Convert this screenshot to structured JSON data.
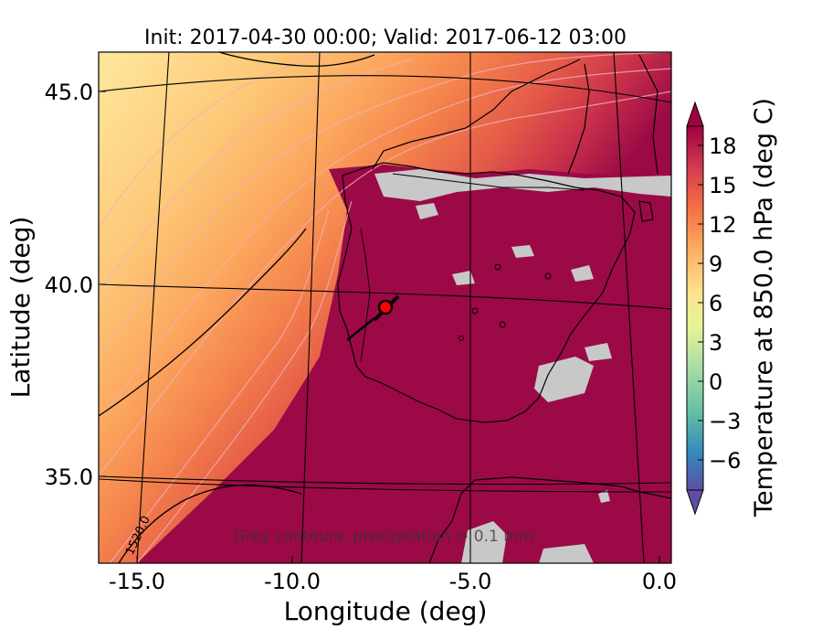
{
  "title": "Init: 2017-04-30 00:00; Valid: 2017-06-12 03:00",
  "xlabel": "Longitude (deg)",
  "ylabel": "Latitude (deg)",
  "xticks": [
    "-15.0",
    "-10.0",
    "-5.0",
    "0.0"
  ],
  "yticks": [
    "45.0",
    "40.0",
    "35.0"
  ],
  "colorbar": {
    "label": "Temperature at 850.0 hPa (deg C)",
    "ticks": [
      "18",
      "15",
      "12",
      "9",
      "6",
      "3",
      "0",
      "−3",
      "−6"
    ],
    "range": [
      -8,
      20
    ]
  },
  "annotation": "Grey contours: precipitation > 0.1 mm",
  "contour_label": "1520.0",
  "marker": {
    "lon": -7.7,
    "lat": 39.4,
    "color": "#ff0000"
  },
  "colors": {
    "hot": "#9b0a46",
    "warm": "#d23c4c",
    "orange": "#f46d43",
    "light": "#fdae61",
    "pale": "#fee08b",
    "precip": "#c8c8c8"
  },
  "map_extent": {
    "lon": [
      -16,
      0.3
    ],
    "lat": [
      32.5,
      46.2
    ]
  }
}
